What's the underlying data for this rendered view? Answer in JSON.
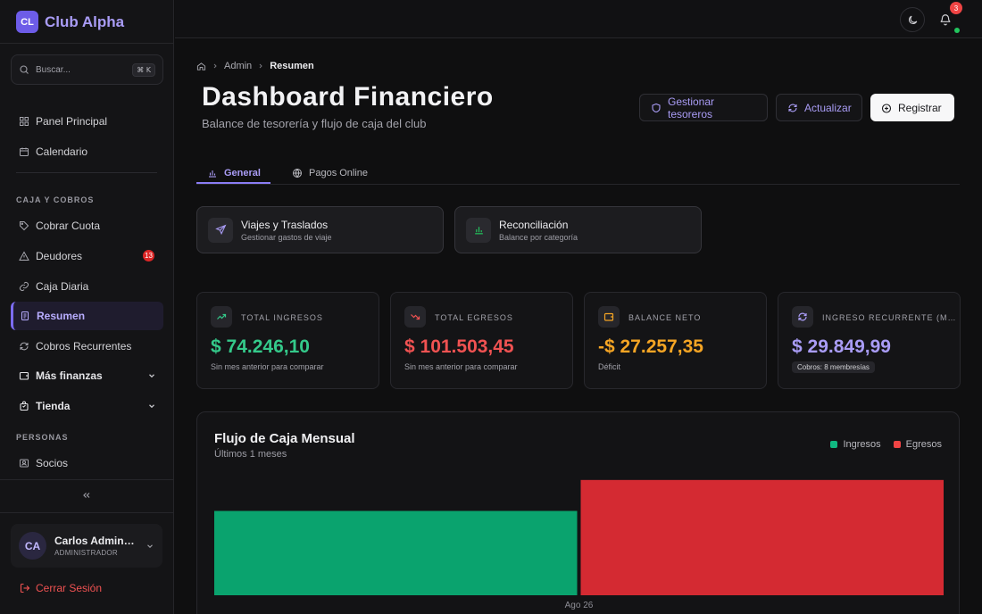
{
  "brand": {
    "logo_text": "CL",
    "name": "Club Alpha"
  },
  "search": {
    "placeholder": "Buscar...",
    "shortcut": "⌘ K"
  },
  "sidebar": {
    "items": [
      {
        "label": "Panel Principal",
        "icon": "grid-icon"
      },
      {
        "label": "Calendario",
        "icon": "calendar-icon"
      }
    ],
    "section_caja": "CAJA Y COBROS",
    "caja_items": [
      {
        "label": "Cobrar Cuota",
        "icon": "tag-icon"
      },
      {
        "label": "Deudores",
        "icon": "alert-triangle-icon",
        "badge": "13"
      },
      {
        "label": "Caja Diaria",
        "icon": "link-icon"
      },
      {
        "label": "Resumen",
        "icon": "report-icon",
        "active": true
      },
      {
        "label": "Cobros Recurrentes",
        "icon": "refresh-icon"
      }
    ],
    "groups": [
      {
        "label": "Más finanzas",
        "icon": "wallet-icon"
      },
      {
        "label": "Tienda",
        "icon": "bag-icon"
      }
    ],
    "section_personas": "PERSONAS",
    "personas_items": [
      {
        "label": "Socios",
        "icon": "id-card-icon"
      }
    ]
  },
  "user": {
    "initials": "CA",
    "name": "Carlos Administrador",
    "role": "ADMINISTRADOR"
  },
  "logout_label": "Cerrar Sesión",
  "topbar": {
    "notification_count": "3"
  },
  "breadcrumb": {
    "parent": "Admin",
    "current": "Resumen"
  },
  "page": {
    "title": "Dashboard Financiero",
    "subtitle": "Balance de tesorería y flujo de caja del club"
  },
  "actions": {
    "manage": "Gestionar tesoreros",
    "refresh": "Actualizar",
    "register": "Registrar"
  },
  "tabs": [
    {
      "label": "General",
      "active": true
    },
    {
      "label": "Pagos Online"
    }
  ],
  "quick_cards": [
    {
      "title": "Viajes y Traslados",
      "subtitle": "Gestionar gastos de viaje"
    },
    {
      "title": "Reconciliación",
      "subtitle": "Balance por categoría"
    }
  ],
  "kpis": [
    {
      "label": "TOTAL INGRESOS",
      "value": "$ 74.246,10",
      "note": "Sin mes anterior para comparar",
      "color": "#34c98a"
    },
    {
      "label": "TOTAL EGRESOS",
      "value": "$ 101.503,45",
      "note": "Sin mes anterior para comparar",
      "color": "#f05252"
    },
    {
      "label": "BALANCE NETO",
      "value": "-$ 27.257,35",
      "note": "Déficit",
      "color": "#f5a524"
    },
    {
      "label": "INGRESO RECURRENTE (MENSUAL)",
      "value": "$ 29.849,99",
      "pill": "Cobros: 8 membresías",
      "color": "#a99cf5"
    }
  ],
  "chart_data": {
    "type": "bar",
    "title": "Flujo de Caja Mensual",
    "subtitle": "Últimos 1 meses",
    "categories": [
      "Ago 26"
    ],
    "series": [
      {
        "name": "Ingresos",
        "values": [
          74246.1
        ],
        "color": "#0aa36e"
      },
      {
        "name": "Egresos",
        "values": [
          101503.45
        ],
        "color": "#d42a32"
      }
    ],
    "ylim": [
      0,
      110000
    ],
    "grid": false,
    "legend_position": "top-right"
  }
}
